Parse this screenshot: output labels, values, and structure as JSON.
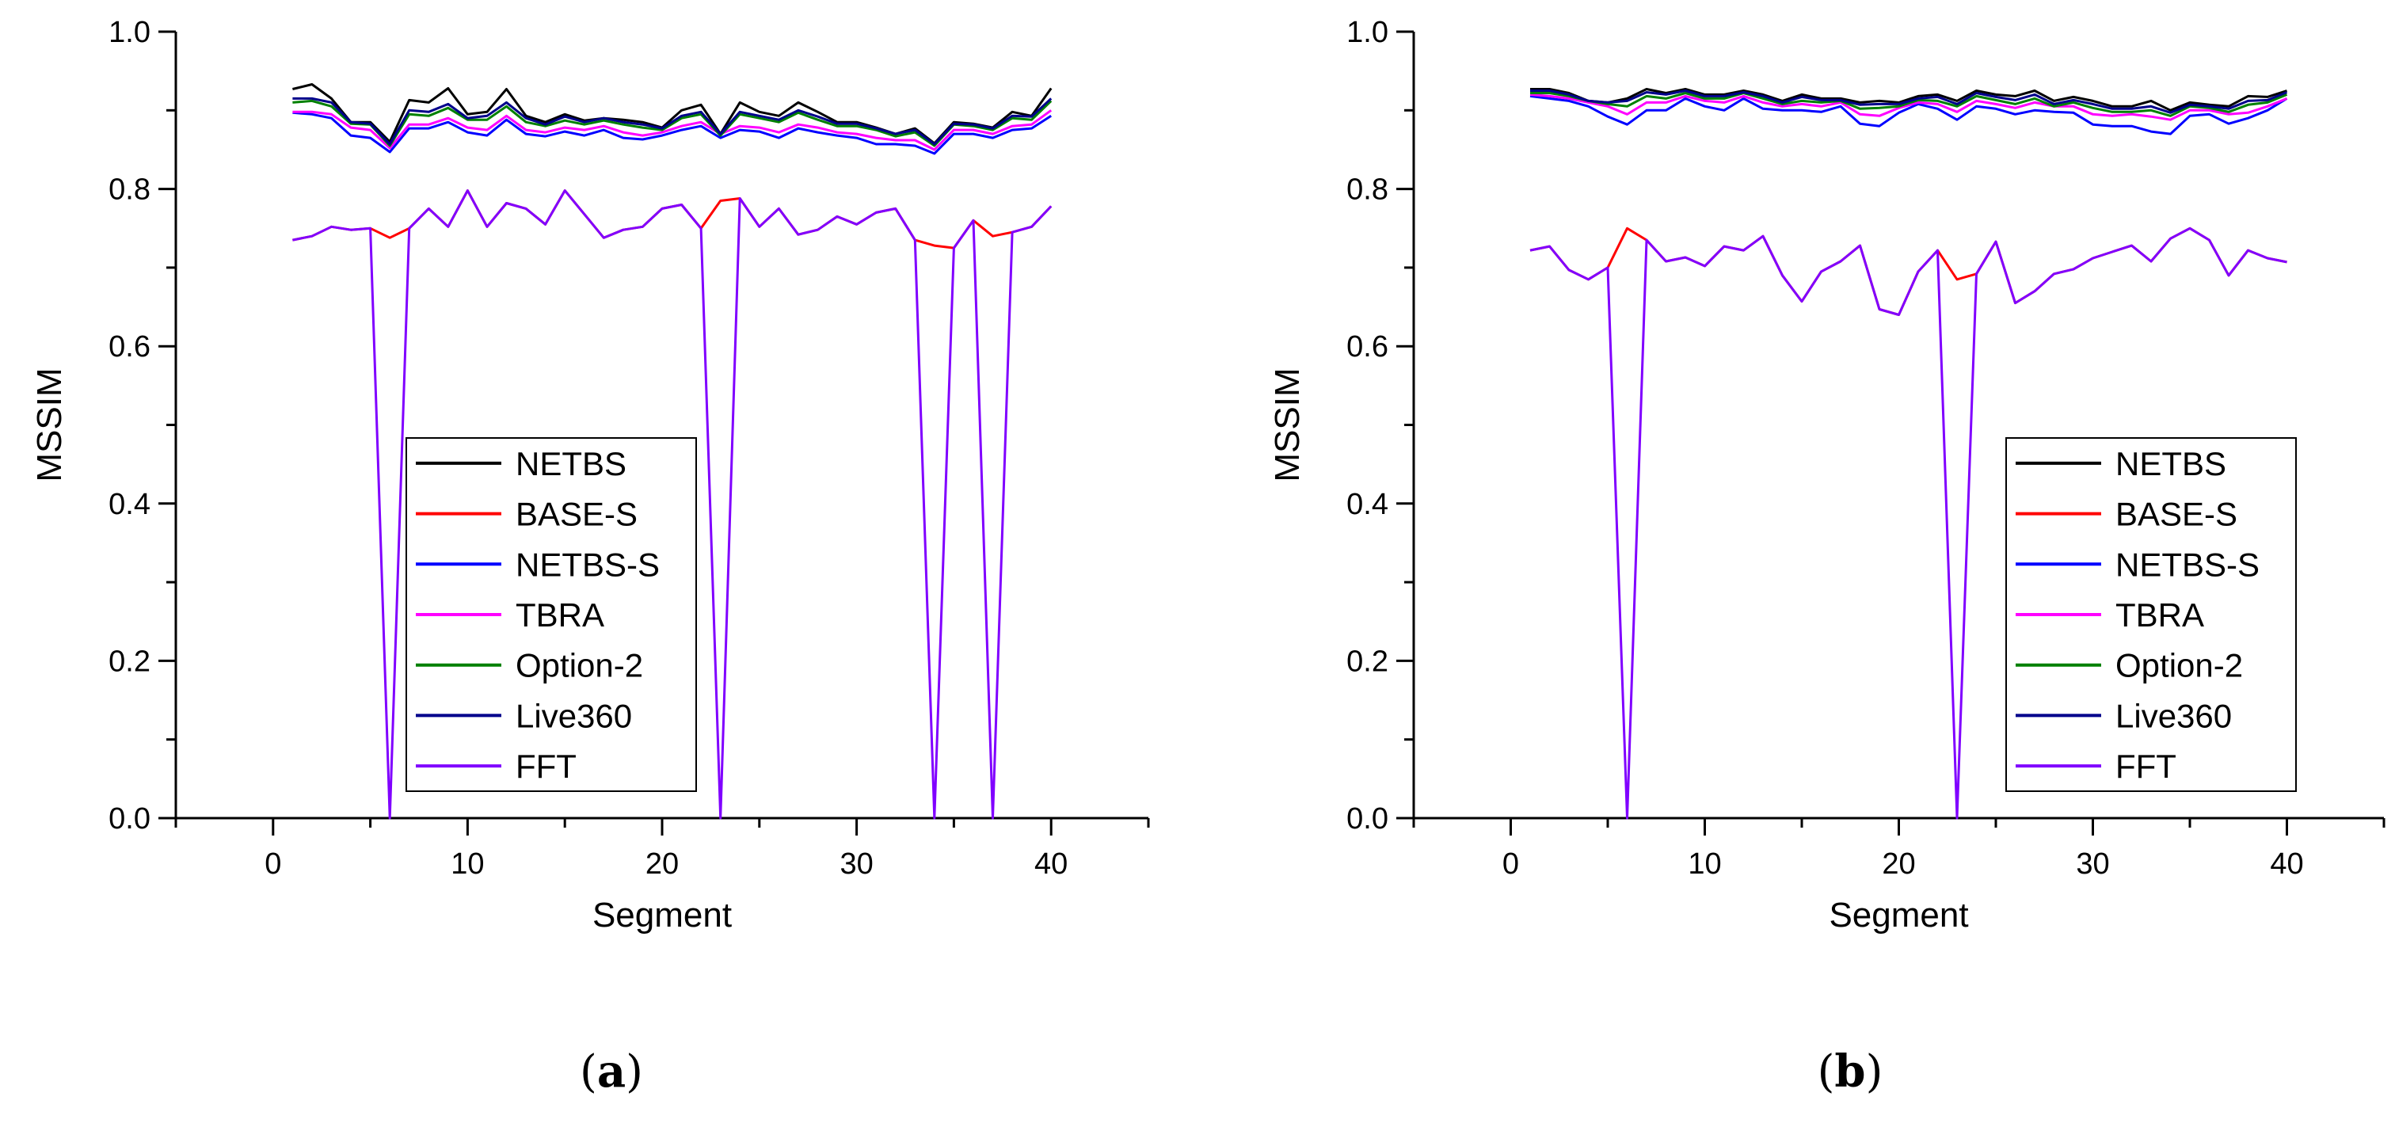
{
  "chart_data": [
    {
      "type": "line",
      "panel_label": "a",
      "xlabel": "Segment",
      "ylabel": "MSSIM",
      "xlim": [
        -5,
        45
      ],
      "ylim": [
        0,
        1.0
      ],
      "xticks": [
        0,
        10,
        20,
        30,
        40
      ],
      "xtick_labels": [
        "0",
        "10",
        "20",
        "30",
        "40"
      ],
      "yticks": [
        0.0,
        0.2,
        0.4,
        0.6,
        0.8,
        1.0
      ],
      "ytick_labels": [
        "0.0",
        "0.2",
        "0.4",
        "0.6",
        "0.8",
        "1.0"
      ],
      "legend_position": "center-bottom",
      "x": [
        1,
        2,
        3,
        4,
        5,
        6,
        7,
        8,
        9,
        10,
        11,
        12,
        13,
        14,
        15,
        16,
        17,
        18,
        19,
        20,
        21,
        22,
        23,
        24,
        25,
        26,
        27,
        28,
        29,
        30,
        31,
        32,
        33,
        34,
        35,
        36,
        37,
        38,
        39,
        40
      ],
      "series": [
        {
          "name": "NETBS",
          "color": "#000000",
          "values": [
            0.927,
            0.933,
            0.915,
            0.885,
            0.885,
            0.86,
            0.913,
            0.91,
            0.928,
            0.895,
            0.898,
            0.927,
            0.893,
            0.885,
            0.895,
            0.887,
            0.89,
            0.888,
            0.885,
            0.878,
            0.9,
            0.907,
            0.87,
            0.91,
            0.898,
            0.893,
            0.91,
            0.898,
            0.885,
            0.885,
            0.878,
            0.87,
            0.877,
            0.858,
            0.885,
            0.883,
            0.878,
            0.898,
            0.893,
            0.928
          ]
        },
        {
          "name": "BASE-S",
          "color": "#ff0000",
          "values": [
            0.735,
            0.74,
            0.752,
            0.748,
            0.75,
            0.738,
            0.75,
            0.775,
            0.752,
            0.798,
            0.752,
            0.782,
            0.775,
            0.755,
            0.798,
            0.768,
            0.738,
            0.748,
            0.752,
            0.775,
            0.78,
            0.75,
            0.785,
            0.788,
            0.752,
            0.775,
            0.742,
            0.748,
            0.765,
            0.755,
            0.77,
            0.775,
            0.735,
            0.728,
            0.725,
            0.76,
            0.74,
            0.745,
            0.752,
            0.778
          ]
        },
        {
          "name": "NETBS-S",
          "color": "#0000ff",
          "values": [
            0.897,
            0.895,
            0.89,
            0.868,
            0.865,
            0.847,
            0.877,
            0.877,
            0.885,
            0.872,
            0.868,
            0.888,
            0.87,
            0.867,
            0.873,
            0.868,
            0.875,
            0.865,
            0.863,
            0.868,
            0.875,
            0.88,
            0.865,
            0.875,
            0.873,
            0.865,
            0.877,
            0.872,
            0.868,
            0.865,
            0.857,
            0.857,
            0.855,
            0.845,
            0.87,
            0.87,
            0.865,
            0.875,
            0.877,
            0.893
          ]
        },
        {
          "name": "TBRA",
          "color": "#ff00ff",
          "values": [
            0.898,
            0.898,
            0.895,
            0.878,
            0.875,
            0.852,
            0.882,
            0.882,
            0.89,
            0.878,
            0.875,
            0.893,
            0.875,
            0.872,
            0.878,
            0.875,
            0.88,
            0.872,
            0.868,
            0.872,
            0.88,
            0.885,
            0.87,
            0.88,
            0.878,
            0.872,
            0.882,
            0.878,
            0.872,
            0.87,
            0.865,
            0.862,
            0.862,
            0.85,
            0.875,
            0.875,
            0.87,
            0.88,
            0.882,
            0.9
          ]
        },
        {
          "name": "Option-2",
          "color": "#008000",
          "values": [
            0.91,
            0.912,
            0.905,
            0.883,
            0.882,
            0.855,
            0.895,
            0.893,
            0.903,
            0.888,
            0.888,
            0.905,
            0.885,
            0.88,
            0.887,
            0.882,
            0.887,
            0.882,
            0.878,
            0.875,
            0.89,
            0.895,
            0.868,
            0.895,
            0.89,
            0.885,
            0.897,
            0.888,
            0.88,
            0.88,
            0.875,
            0.867,
            0.872,
            0.855,
            0.882,
            0.88,
            0.875,
            0.89,
            0.888,
            0.912
          ]
        },
        {
          "name": "Live360",
          "color": "#00008b",
          "values": [
            0.915,
            0.915,
            0.91,
            0.885,
            0.883,
            0.857,
            0.9,
            0.898,
            0.908,
            0.89,
            0.893,
            0.91,
            0.89,
            0.882,
            0.892,
            0.885,
            0.89,
            0.885,
            0.882,
            0.877,
            0.893,
            0.898,
            0.87,
            0.898,
            0.893,
            0.888,
            0.9,
            0.892,
            0.883,
            0.883,
            0.877,
            0.87,
            0.875,
            0.857,
            0.883,
            0.882,
            0.877,
            0.893,
            0.892,
            0.915
          ]
        },
        {
          "name": "FFT",
          "color": "#8000ff",
          "values": [
            0.735,
            0.74,
            0.752,
            0.748,
            0.75,
            0.0,
            0.75,
            0.775,
            0.752,
            0.798,
            0.752,
            0.782,
            0.775,
            0.755,
            0.798,
            0.768,
            0.738,
            0.748,
            0.752,
            0.775,
            0.78,
            0.75,
            0.0,
            0.788,
            0.752,
            0.775,
            0.742,
            0.748,
            0.765,
            0.755,
            0.77,
            0.775,
            0.735,
            0.0,
            0.725,
            0.76,
            0.0,
            0.745,
            0.752,
            0.778
          ]
        }
      ]
    },
    {
      "type": "line",
      "panel_label": "b",
      "xlabel": "Segment",
      "ylabel": "MSSIM",
      "xlim": [
        -5,
        45
      ],
      "ylim": [
        0,
        1.0
      ],
      "xticks": [
        0,
        10,
        20,
        30,
        40
      ],
      "xtick_labels": [
        "0",
        "10",
        "20",
        "30",
        "40"
      ],
      "yticks": [
        0.0,
        0.2,
        0.4,
        0.6,
        0.8,
        1.0
      ],
      "ytick_labels": [
        "0.0",
        "0.2",
        "0.4",
        "0.6",
        "0.8",
        "1.0"
      ],
      "legend_position": "bottom-right",
      "x": [
        1,
        2,
        3,
        4,
        5,
        6,
        7,
        8,
        9,
        10,
        11,
        12,
        13,
        14,
        15,
        16,
        17,
        18,
        19,
        20,
        21,
        22,
        23,
        24,
        25,
        26,
        27,
        28,
        29,
        30,
        31,
        32,
        33,
        34,
        35,
        36,
        37,
        38,
        39,
        40
      ],
      "series": [
        {
          "name": "NETBS",
          "color": "#000000",
          "values": [
            0.927,
            0.927,
            0.922,
            0.912,
            0.91,
            0.915,
            0.927,
            0.922,
            0.927,
            0.92,
            0.92,
            0.925,
            0.92,
            0.912,
            0.92,
            0.915,
            0.915,
            0.91,
            0.912,
            0.91,
            0.918,
            0.92,
            0.912,
            0.925,
            0.92,
            0.918,
            0.925,
            0.912,
            0.917,
            0.912,
            0.905,
            0.905,
            0.912,
            0.9,
            0.91,
            0.907,
            0.905,
            0.918,
            0.917,
            0.925
          ]
        },
        {
          "name": "BASE-S",
          "color": "#ff0000",
          "values": [
            0.722,
            0.727,
            0.697,
            0.685,
            0.7,
            0.75,
            0.735,
            0.708,
            0.713,
            0.702,
            0.727,
            0.722,
            0.74,
            0.69,
            0.657,
            0.695,
            0.708,
            0.728,
            0.647,
            0.64,
            0.695,
            0.722,
            0.685,
            0.692,
            0.733,
            0.655,
            0.67,
            0.692,
            0.698,
            0.712,
            0.72,
            0.728,
            0.708,
            0.737,
            0.75,
            0.735,
            0.69,
            0.722,
            0.712,
            0.707
          ]
        },
        {
          "name": "NETBS-S",
          "color": "#0000ff",
          "values": [
            0.918,
            0.915,
            0.912,
            0.905,
            0.892,
            0.882,
            0.9,
            0.9,
            0.915,
            0.905,
            0.9,
            0.915,
            0.902,
            0.9,
            0.9,
            0.898,
            0.905,
            0.883,
            0.88,
            0.897,
            0.908,
            0.902,
            0.888,
            0.905,
            0.902,
            0.895,
            0.9,
            0.898,
            0.897,
            0.882,
            0.88,
            0.88,
            0.873,
            0.87,
            0.893,
            0.895,
            0.883,
            0.89,
            0.9,
            0.915
          ]
        },
        {
          "name": "TBRA",
          "color": "#ff00ff",
          "values": [
            0.92,
            0.918,
            0.915,
            0.91,
            0.905,
            0.895,
            0.91,
            0.91,
            0.918,
            0.912,
            0.91,
            0.918,
            0.91,
            0.905,
            0.908,
            0.905,
            0.91,
            0.895,
            0.893,
            0.903,
            0.91,
            0.908,
            0.898,
            0.912,
            0.908,
            0.903,
            0.91,
            0.905,
            0.905,
            0.895,
            0.893,
            0.895,
            0.892,
            0.888,
            0.9,
            0.9,
            0.895,
            0.897,
            0.905,
            0.915
          ]
        },
        {
          "name": "Option-2",
          "color": "#008000",
          "values": [
            0.922,
            0.922,
            0.918,
            0.912,
            0.908,
            0.905,
            0.918,
            0.915,
            0.922,
            0.915,
            0.915,
            0.922,
            0.915,
            0.908,
            0.912,
            0.91,
            0.912,
            0.902,
            0.903,
            0.905,
            0.913,
            0.912,
            0.905,
            0.918,
            0.913,
            0.908,
            0.915,
            0.905,
            0.91,
            0.903,
            0.898,
            0.898,
            0.9,
            0.893,
            0.905,
            0.903,
            0.898,
            0.907,
            0.91,
            0.92
          ]
        },
        {
          "name": "Live360",
          "color": "#00008b",
          "values": [
            0.925,
            0.925,
            0.92,
            0.912,
            0.91,
            0.912,
            0.923,
            0.92,
            0.925,
            0.918,
            0.918,
            0.923,
            0.918,
            0.91,
            0.917,
            0.913,
            0.913,
            0.907,
            0.908,
            0.908,
            0.915,
            0.917,
            0.908,
            0.922,
            0.917,
            0.913,
            0.92,
            0.908,
            0.913,
            0.908,
            0.902,
            0.902,
            0.905,
            0.897,
            0.907,
            0.905,
            0.902,
            0.912,
            0.913,
            0.923
          ]
        },
        {
          "name": "FFT",
          "color": "#8000ff",
          "values": [
            0.722,
            0.727,
            0.697,
            0.685,
            0.7,
            0.0,
            0.735,
            0.708,
            0.713,
            0.702,
            0.727,
            0.722,
            0.74,
            0.69,
            0.657,
            0.695,
            0.708,
            0.728,
            0.647,
            0.64,
            0.695,
            0.722,
            0.0,
            0.692,
            0.733,
            0.655,
            0.67,
            0.692,
            0.698,
            0.712,
            0.72,
            0.728,
            0.708,
            0.737,
            0.75,
            0.735,
            0.69,
            0.722,
            0.712,
            0.707
          ]
        }
      ]
    }
  ]
}
